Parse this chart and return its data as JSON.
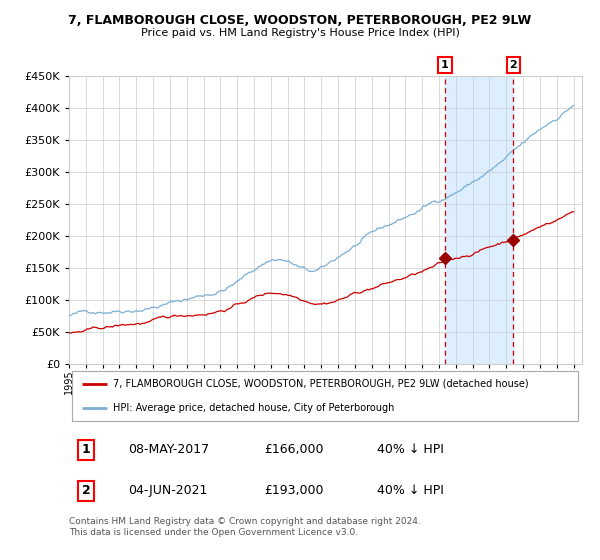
{
  "title": "7, FLAMBOROUGH CLOSE, WOODSTON, PETERBOROUGH, PE2 9LW",
  "subtitle": "Price paid vs. HM Land Registry's House Price Index (HPI)",
  "legend_line1": "7, FLAMBOROUGH CLOSE, WOODSTON, PETERBOROUGH, PE2 9LW (detached house)",
  "legend_line2": "HPI: Average price, detached house, City of Peterborough",
  "footer": "Contains HM Land Registry data © Crown copyright and database right 2024.\nThis data is licensed under the Open Government Licence v3.0.",
  "sale1_date": "08-MAY-2017",
  "sale1_price": "£166,000",
  "sale1_hpi": "40% ↓ HPI",
  "sale2_date": "04-JUN-2021",
  "sale2_price": "£193,000",
  "sale2_hpi": "40% ↓ HPI",
  "hpi_color": "#7bafd4",
  "price_color": "#cc0000",
  "marker_color": "#990000",
  "vline_color": "#cc0000",
  "shade_color": "#ddeeff",
  "grid_color": "#cccccc",
  "bg_color": "#ffffff",
  "ylim": [
    0,
    450000
  ],
  "yticks": [
    0,
    50000,
    100000,
    150000,
    200000,
    250000,
    300000,
    350000,
    400000,
    450000
  ],
  "sale1_x": 2017.35,
  "sale1_y": 166000,
  "sale2_x": 2021.42,
  "sale2_y": 193000,
  "xlim_start": 1995,
  "xlim_end": 2025.5
}
